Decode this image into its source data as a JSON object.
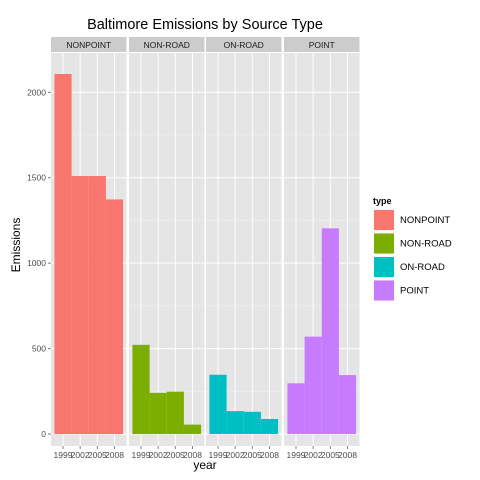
{
  "chart_data": {
    "type": "bar",
    "title": "Baltimore Emissions by Source Type",
    "xlabel": "year",
    "ylabel": "Emissions",
    "categories": [
      "1999",
      "2002",
      "2005",
      "2008"
    ],
    "ylim": [
      -70,
      2230
    ],
    "yticks": [
      0,
      500,
      1000,
      1500,
      2000
    ],
    "grid": true,
    "legend_title": "type",
    "legend_position": "right",
    "facets": [
      {
        "name": "NONPOINT",
        "color": "#F8766D",
        "values": [
          2107,
          1510,
          1510,
          1373
        ]
      },
      {
        "name": "NON-ROAD",
        "color": "#7CAE00",
        "values": [
          522,
          241,
          248,
          55
        ]
      },
      {
        "name": "ON-ROAD",
        "color": "#00BFC4",
        "values": [
          347,
          134,
          130,
          88
        ]
      },
      {
        "name": "POINT",
        "color": "#C77CFF",
        "values": [
          297,
          570,
          1204,
          345
        ]
      }
    ]
  }
}
